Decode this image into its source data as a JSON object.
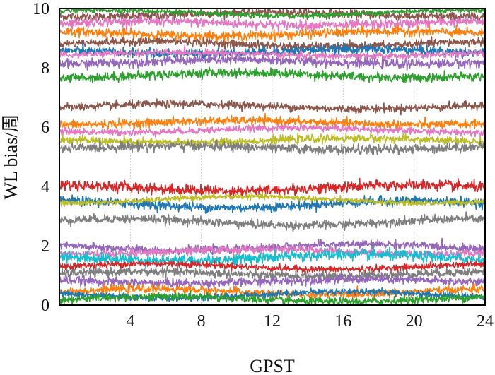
{
  "chart_data": {
    "type": "line",
    "title": "",
    "xlabel": "GPST",
    "ylabel": "WL bias/周",
    "xlim": [
      0,
      24
    ],
    "ylim": [
      0,
      10
    ],
    "xticks": [
      4,
      8,
      12,
      16,
      20,
      24
    ],
    "yticks": [
      0,
      2,
      4,
      6,
      8,
      10
    ],
    "xtick_labels": [
      "4",
      "8",
      "12",
      "16",
      "20",
      "24"
    ],
    "ytick_labels": [
      "0",
      "2",
      "4",
      "6",
      "8",
      "10"
    ],
    "grid": {
      "x": true,
      "y": false
    },
    "legend": "none",
    "series": [
      {
        "color": "#8C564B",
        "mean": 9.8,
        "noise": 0.13
      },
      {
        "color": "#E377C2",
        "mean": 9.5,
        "noise": 0.14
      },
      {
        "color": "#FF7F0E",
        "mean": 9.15,
        "noise": 0.14
      },
      {
        "color": "#2CA02C",
        "mean": 9.85,
        "noise": 0.08
      },
      {
        "color": "#8C564B",
        "mean": 8.8,
        "noise": 0.12
      },
      {
        "color": "#1F77B4",
        "mean": 8.55,
        "noise": 0.14
      },
      {
        "color": "#9467BD",
        "mean": 8.2,
        "noise": 0.14
      },
      {
        "color": "#E377C2",
        "mean": 8.45,
        "noise": 0.1
      },
      {
        "color": "#2CA02C",
        "mean": 7.75,
        "noise": 0.14
      },
      {
        "color": "#8C564B",
        "mean": 6.7,
        "noise": 0.12
      },
      {
        "color": "#FF7F0E",
        "mean": 6.15,
        "noise": 0.13
      },
      {
        "color": "#E377C2",
        "mean": 5.9,
        "noise": 0.1
      },
      {
        "color": "#BCBD22",
        "mean": 5.55,
        "noise": 0.12
      },
      {
        "color": "#7F7F7F",
        "mean": 5.3,
        "noise": 0.14
      },
      {
        "color": "#D62728",
        "mean": 3.95,
        "noise": 0.16
      },
      {
        "color": "#1F77B4",
        "mean": 3.4,
        "noise": 0.14
      },
      {
        "color": "#BCBD22",
        "mean": 3.55,
        "noise": 0.08
      },
      {
        "color": "#7F7F7F",
        "mean": 2.8,
        "noise": 0.13
      },
      {
        "color": "#9467BD",
        "mean": 1.95,
        "noise": 0.12
      },
      {
        "color": "#E377C2",
        "mean": 1.8,
        "noise": 0.12
      },
      {
        "color": "#17BECF",
        "mean": 1.6,
        "noise": 0.17
      },
      {
        "color": "#D62728",
        "mean": 1.3,
        "noise": 0.1
      },
      {
        "color": "#7F7F7F",
        "mean": 1.05,
        "noise": 0.13
      },
      {
        "color": "#9467BD",
        "mean": 0.8,
        "noise": 0.13
      },
      {
        "color": "#FF7F0E",
        "mean": 0.45,
        "noise": 0.12
      },
      {
        "color": "#1F77B4",
        "mean": 0.35,
        "noise": 0.1
      },
      {
        "color": "#2CA02C",
        "mean": 0.2,
        "noise": 0.12
      }
    ]
  }
}
